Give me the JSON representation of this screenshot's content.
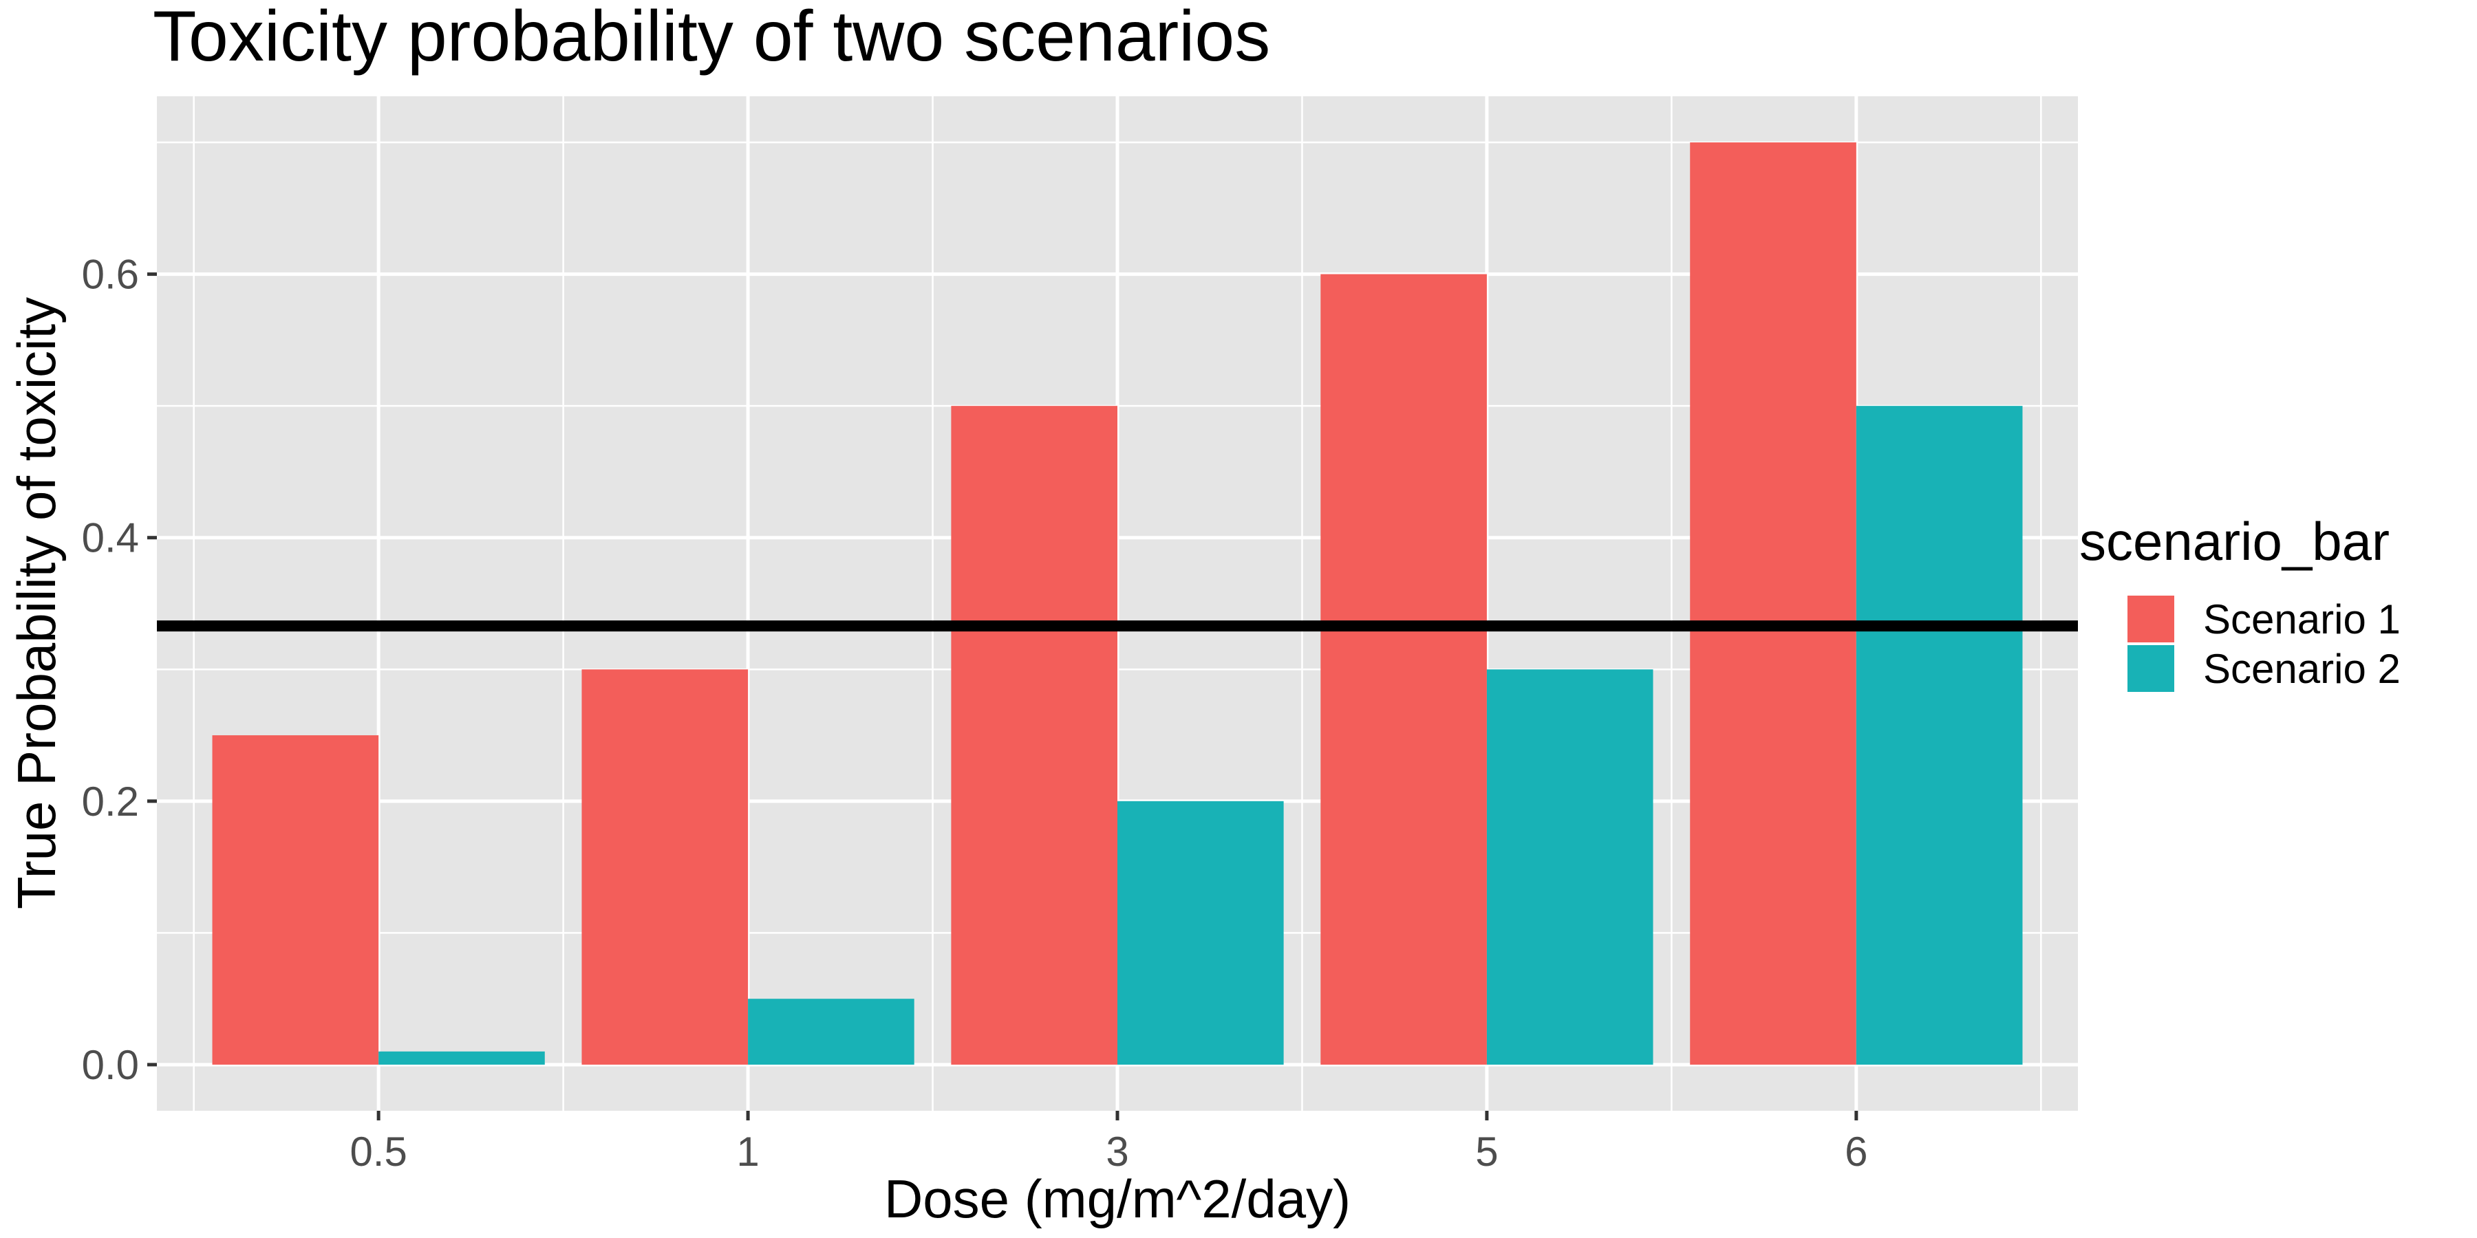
{
  "chart_data": {
    "type": "bar",
    "title": "Toxicity probability of two scenarios",
    "xlabel": "Dose (mg/m^2/day)",
    "ylabel": "True Probability of toxicity",
    "categories": [
      "0.5",
      "1",
      "3",
      "5",
      "6"
    ],
    "series": [
      {
        "name": "Scenario 1",
        "color": "#F35E5A",
        "values": [
          0.25,
          0.3,
          0.5,
          0.6,
          0.7
        ]
      },
      {
        "name": "Scenario 2",
        "color": "#18B2B6",
        "values": [
          0.01,
          0.05,
          0.2,
          0.3,
          0.5
        ]
      }
    ],
    "ylim": [
      -0.035,
      0.735
    ],
    "yticks": [
      0.0,
      0.2,
      0.4,
      0.6
    ],
    "ytick_labels": [
      "0.0",
      "0.2",
      "0.4",
      "0.6"
    ],
    "reference_line": {
      "y": 0.333,
      "color": "#000000"
    },
    "legend": {
      "title": "scenario_bar",
      "position": "right"
    },
    "grid": true,
    "panel_background": "#E5E5E5",
    "grid_color": "#FFFFFF"
  }
}
